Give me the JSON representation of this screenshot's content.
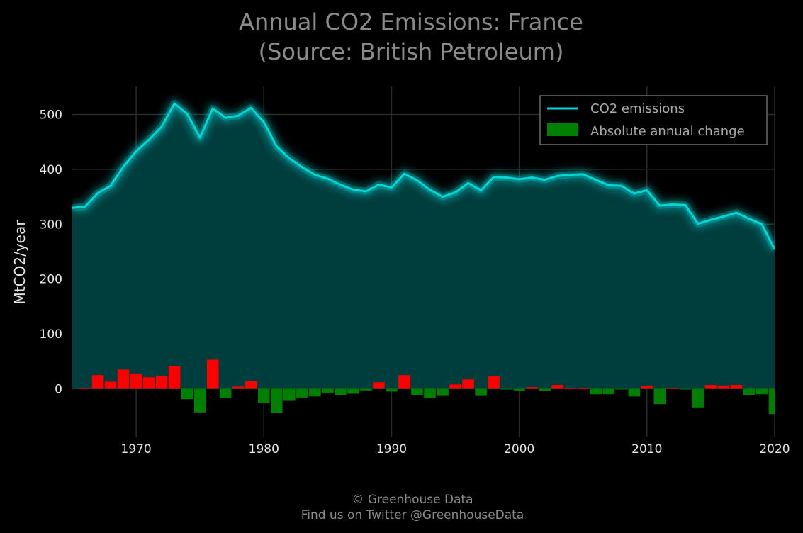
{
  "chart_data": {
    "type": "line",
    "title": "Annual CO2 Emissions: France",
    "subtitle": "(Source: British Petroleum)",
    "xlabel": "",
    "ylabel": "MtCO2/year",
    "xlim": [
      1965,
      2020
    ],
    "ylim": [
      -80,
      550
    ],
    "x_ticks": [
      1970,
      1980,
      1990,
      2000,
      2010,
      2020
    ],
    "y_ticks": [
      0,
      100,
      200,
      300,
      400,
      500
    ],
    "grid": true,
    "legend_position": "top-right",
    "x": [
      1965,
      1966,
      1967,
      1968,
      1969,
      1970,
      1971,
      1972,
      1973,
      1974,
      1975,
      1976,
      1977,
      1978,
      1979,
      1980,
      1981,
      1982,
      1983,
      1984,
      1985,
      1986,
      1987,
      1988,
      1989,
      1990,
      1991,
      1992,
      1993,
      1994,
      1995,
      1996,
      1997,
      1998,
      1999,
      2000,
      2001,
      2002,
      2003,
      2004,
      2005,
      2006,
      2007,
      2008,
      2009,
      2010,
      2011,
      2012,
      2013,
      2014,
      2015,
      2016,
      2017,
      2018,
      2019,
      2020
    ],
    "series": [
      {
        "name": "CO2 emissions",
        "kind": "line",
        "color": "#00d8d8",
        "fill_color": "#003d3d",
        "values": [
          330,
          332,
          357,
          370,
          405,
          433,
          454,
          478,
          520,
          501,
          458,
          511,
          494,
          498,
          512,
          486,
          442,
          420,
          404,
          390,
          383,
          372,
          363,
          360,
          372,
          367,
          392,
          380,
          363,
          350,
          358,
          375,
          362,
          386,
          385,
          382,
          385,
          381,
          388,
          390,
          391,
          381,
          371,
          370,
          356,
          362,
          334,
          336,
          335,
          301,
          308,
          314,
          321,
          310,
          300,
          254
        ]
      },
      {
        "name": "Absolute annual change",
        "kind": "bar",
        "color_positive": "#ff0000",
        "color_negative": "#008000",
        "legend_color": "#008000",
        "values": [
          null,
          2,
          25,
          13,
          35,
          28,
          21,
          24,
          42,
          -19,
          -43,
          53,
          -17,
          4,
          14,
          -26,
          -44,
          -22,
          -16,
          -14,
          -7,
          -11,
          -9,
          -3,
          12,
          -5,
          25,
          -12,
          -17,
          -13,
          8,
          17,
          -13,
          24,
          -1,
          -3,
          3,
          -4,
          7,
          2,
          1,
          -10,
          -10,
          -1,
          -14,
          6,
          -28,
          2,
          -1,
          -34,
          7,
          6,
          7,
          -11,
          -10,
          -46
        ]
      }
    ]
  },
  "credits": {
    "line1": "© Greenhouse Data",
    "line2": "Find us on Twitter @GreenhouseData"
  }
}
